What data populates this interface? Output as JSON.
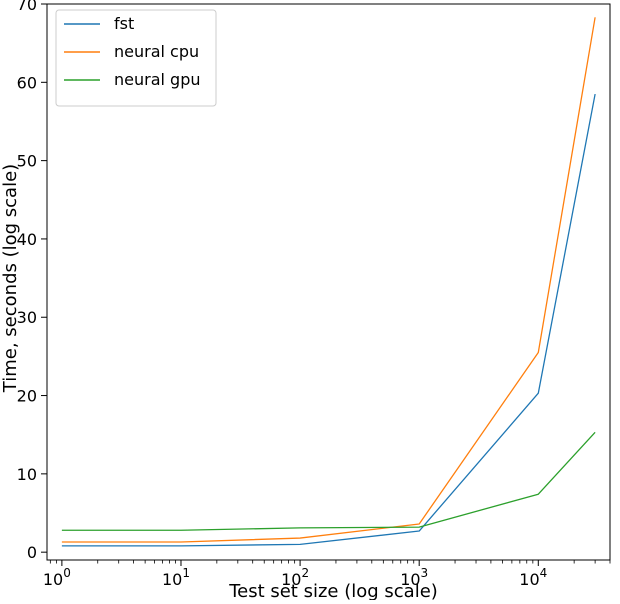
{
  "chart_data": {
    "type": "line",
    "title": "",
    "xlabel": "Test set size (log scale)",
    "ylabel": "Time, seconds (log scale)",
    "xscale": "log",
    "xlim": [
      0.75,
      40000
    ],
    "ylim": [
      -1,
      70
    ],
    "grid": false,
    "legend_position": "top-left",
    "x": [
      1,
      10,
      100,
      1000,
      10000,
      30000
    ],
    "x_ticks": [
      {
        "value": 1,
        "base": "10",
        "exp": "0"
      },
      {
        "value": 10,
        "base": "10",
        "exp": "1"
      },
      {
        "value": 100,
        "base": "10",
        "exp": "2"
      },
      {
        "value": 1000,
        "base": "10",
        "exp": "3"
      },
      {
        "value": 10000,
        "base": "10",
        "exp": "4"
      }
    ],
    "y_ticks": [
      0,
      10,
      20,
      30,
      40,
      50,
      60,
      70
    ],
    "series": [
      {
        "name": "fst",
        "color": "#1f77b4",
        "values": [
          0.8,
          0.8,
          1.0,
          2.7,
          20.3,
          58.5
        ]
      },
      {
        "name": "neural cpu",
        "color": "#ff7f0e",
        "values": [
          1.3,
          1.3,
          1.8,
          3.6,
          25.5,
          68.3
        ]
      },
      {
        "name": "neural gpu",
        "color": "#2ca02c",
        "values": [
          2.8,
          2.8,
          3.1,
          3.2,
          7.4,
          15.3
        ]
      }
    ]
  }
}
